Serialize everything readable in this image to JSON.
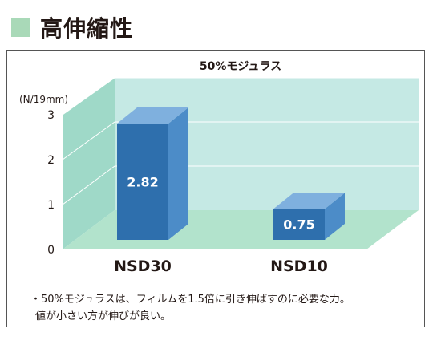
{
  "header": {
    "title": "高伸縮性",
    "accent_color": "#a9d9b8"
  },
  "chart_data": {
    "type": "bar",
    "title": "50%モジュラス",
    "ylabel": "(N/19mm)",
    "categories": [
      "NSD30",
      "NSD10"
    ],
    "values": [
      2.82,
      0.75
    ],
    "value_labels": [
      "2.82",
      "0.75"
    ],
    "ylim": [
      0,
      3
    ],
    "yticks": [
      "0",
      "1",
      "2",
      "3"
    ],
    "bar_color": "#2e6fad",
    "grid": false
  },
  "notes": [
    "・50%モジュラスは、フィルムを1.5倍に引き伸ばすのに必要な力。",
    "値が小さい方が伸びが良い。"
  ]
}
